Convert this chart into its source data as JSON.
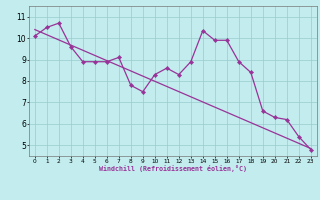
{
  "xlabel": "Windchill (Refroidissement éolien,°C)",
  "xlim": [
    -0.5,
    23.5
  ],
  "ylim": [
    4.5,
    11.5
  ],
  "yticks": [
    5,
    6,
    7,
    8,
    9,
    10,
    11
  ],
  "xticks": [
    0,
    1,
    2,
    3,
    4,
    5,
    6,
    7,
    8,
    9,
    10,
    11,
    12,
    13,
    14,
    15,
    16,
    17,
    18,
    19,
    20,
    21,
    22,
    23
  ],
  "bg_color": "#c2eced",
  "line_color": "#993399",
  "grid_color": "#99cccc",
  "series1_y": [
    10.1,
    10.5,
    10.7,
    9.6,
    8.9,
    8.9,
    8.9,
    9.1,
    7.8,
    7.5,
    8.3,
    8.6,
    8.3,
    8.9,
    10.35,
    9.9,
    9.9,
    8.9,
    8.4,
    6.6,
    6.3,
    6.2,
    5.4,
    4.8
  ],
  "trend_x": [
    0,
    23
  ],
  "trend_y": [
    10.4,
    4.85
  ]
}
